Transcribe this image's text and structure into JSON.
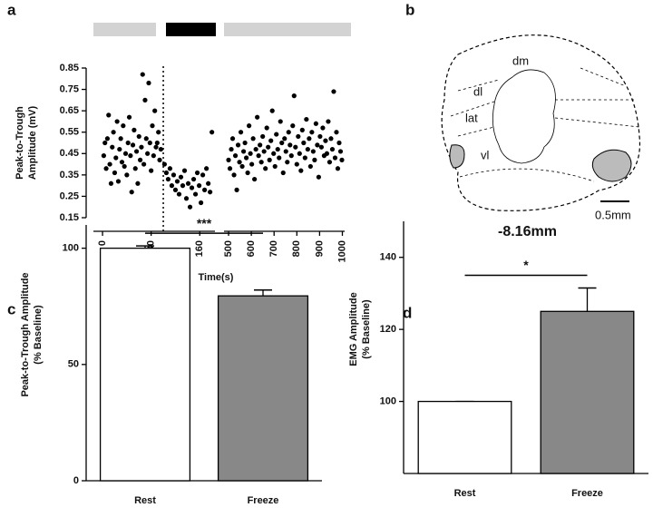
{
  "chart_data": [
    {
      "type": "scatter",
      "panel": "a",
      "ylabel": [
        "Peak-to-Trough",
        "Amplitude (mV)"
      ],
      "xlabel": "Time(s)",
      "x": [
        2,
        4,
        6,
        8,
        10,
        12,
        14,
        16,
        18,
        20,
        22,
        24,
        26,
        28,
        30,
        32,
        34,
        36,
        38,
        40,
        42,
        44,
        46,
        48,
        50,
        52,
        54,
        56,
        58,
        60,
        62,
        64,
        66,
        68,
        70,
        72,
        74,
        76,
        78,
        80,
        82,
        84,
        86,
        88,
        90,
        92,
        94,
        96,
        102,
        105,
        108,
        111,
        114,
        117,
        120,
        123,
        126,
        129,
        132,
        135,
        138,
        141,
        144,
        147,
        150,
        153,
        156,
        159,
        162,
        165,
        168,
        171,
        174,
        177,
        180
      ],
      "y": [
        0.44,
        0.5,
        0.38,
        0.52,
        0.63,
        0.4,
        0.31,
        0.48,
        0.55,
        0.36,
        0.43,
        0.6,
        0.32,
        0.47,
        0.52,
        0.41,
        0.58,
        0.39,
        0.45,
        0.35,
        0.5,
        0.62,
        0.44,
        0.27,
        0.49,
        0.56,
        0.38,
        0.46,
        0.31,
        0.53,
        0.42,
        0.48,
        0.82,
        0.4,
        0.7,
        0.52,
        0.45,
        0.78,
        0.5,
        0.37,
        0.58,
        0.44,
        0.65,
        0.48,
        0.5,
        0.55,
        0.42,
        0.47,
        0.4,
        0.36,
        0.33,
        0.38,
        0.3,
        0.35,
        0.28,
        0.32,
        0.26,
        0.34,
        0.3,
        0.37,
        0.24,
        0.31,
        0.2,
        0.29,
        0.33,
        0.26,
        0.36,
        0.3,
        0.22,
        0.35,
        0.28,
        0.38,
        0.31,
        0.27,
        0.55
      ],
      "color": "#000000",
      "vline": 100,
      "xlim": [
        -15,
        185
      ],
      "xticks": [
        0,
        80,
        160
      ],
      "ylim": [
        0.15,
        0.85
      ],
      "yticks": [
        0.15,
        0.25,
        0.35,
        0.45,
        0.55,
        0.65,
        0.75,
        0.85
      ]
    },
    {
      "type": "scatter",
      "x": [
        500,
        506,
        512,
        518,
        524,
        530,
        536,
        542,
        548,
        554,
        560,
        566,
        572,
        578,
        584,
        590,
        596,
        602,
        608,
        614,
        620,
        626,
        632,
        638,
        644,
        650,
        656,
        662,
        668,
        674,
        680,
        686,
        692,
        698,
        704,
        710,
        716,
        722,
        728,
        734,
        740,
        746,
        752,
        758,
        764,
        770,
        776,
        782,
        788,
        794,
        800,
        806,
        812,
        818,
        824,
        830,
        836,
        842,
        848,
        854,
        860,
        866,
        872,
        878,
        884,
        890,
        896,
        902,
        908,
        914,
        920,
        926,
        932,
        938,
        944,
        950,
        956,
        962,
        968,
        974,
        980,
        986,
        992,
        998
      ],
      "y": [
        0.42,
        0.38,
        0.47,
        0.52,
        0.35,
        0.44,
        0.28,
        0.49,
        0.41,
        0.55,
        0.39,
        0.46,
        0.5,
        0.43,
        0.36,
        0.58,
        0.45,
        0.4,
        0.52,
        0.33,
        0.47,
        0.62,
        0.44,
        0.49,
        0.41,
        0.53,
        0.46,
        0.38,
        0.57,
        0.48,
        0.42,
        0.51,
        0.65,
        0.45,
        0.39,
        0.54,
        0.47,
        0.43,
        0.6,
        0.5,
        0.36,
        0.52,
        0.46,
        0.41,
        0.55,
        0.49,
        0.44,
        0.58,
        0.72,
        0.48,
        0.4,
        0.53,
        0.45,
        0.37,
        0.56,
        0.5,
        0.43,
        0.61,
        0.47,
        0.52,
        0.39,
        0.55,
        0.46,
        0.42,
        0.59,
        0.49,
        0.34,
        0.53,
        0.48,
        0.57,
        0.44,
        0.51,
        0.45,
        0.6,
        0.41,
        0.52,
        0.47,
        0.74,
        0.43,
        0.55,
        0.38,
        0.5,
        0.46,
        0.42
      ],
      "color": "#000000",
      "xlim": [
        480,
        1010
      ],
      "xticks": [
        500,
        600,
        700,
        800,
        900,
        1000
      ],
      "ylim": [
        0.15,
        0.85
      ]
    },
    {
      "type": "bar",
      "panel": "c",
      "ylabel": [
        "Peak-to-Trough Amplitude",
        "(% Baseline)"
      ],
      "categories": [
        "Rest",
        "Freeze"
      ],
      "values": [
        100,
        79.5
      ],
      "errors": [
        1,
        2.5
      ],
      "colors": [
        "#ffffff",
        "#888888"
      ],
      "significance": "***",
      "ylim": [
        0,
        110
      ],
      "yticks": [
        0,
        50,
        100
      ]
    },
    {
      "type": "bar",
      "panel": "d",
      "ylabel": [
        "EMG Amplitude",
        "(% Baseline)"
      ],
      "categories": [
        "Rest",
        "Freeze"
      ],
      "values": [
        100,
        125
      ],
      "errors": [
        0,
        6.5
      ],
      "colors": [
        "#ffffff",
        "#888888"
      ],
      "significance": "*",
      "ylim": [
        80,
        150
      ],
      "yticks": [
        100,
        120,
        140
      ]
    }
  ],
  "diagram": {
    "panel": "b",
    "regions": [
      "dm",
      "dl",
      "lat",
      "vl"
    ],
    "scale_bar": "0.5mm",
    "level": "-8.16mm"
  }
}
